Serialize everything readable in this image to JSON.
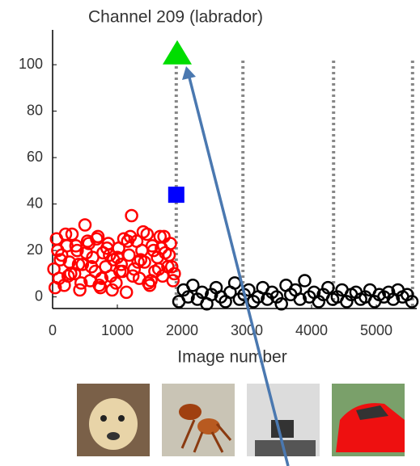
{
  "chart_data": {
    "type": "scatter",
    "title": "Channel 209 (labrador)",
    "x_label": "Image number",
    "xlim": [
      0,
      5625
    ],
    "ylim": [
      -5,
      115
    ],
    "xticks": [
      0,
      1000,
      2000,
      3000,
      4000,
      5000
    ],
    "yticks": [
      0,
      20,
      40,
      60,
      80,
      100
    ],
    "vlines": [
      1910,
      2940,
      4340,
      5560
    ],
    "vline_color": "#888888",
    "series": [
      {
        "color": "#ff0000",
        "marker": "circle",
        "x": [
          20,
          60,
          100,
          140,
          180,
          220,
          260,
          300,
          340,
          380,
          420,
          460,
          500,
          540,
          580,
          620,
          660,
          700,
          740,
          780,
          820,
          860,
          900,
          940,
          980,
          1020,
          1060,
          1100,
          1140,
          1180,
          1220,
          1260,
          1300,
          1340,
          1380,
          1420,
          1460,
          1500,
          1540,
          1580,
          1620,
          1660,
          1700,
          1740,
          1780,
          1820,
          1860,
          40,
          120,
          200,
          280,
          360,
          440,
          520,
          600,
          680,
          760,
          840,
          920,
          1000,
          1080,
          1160,
          1240,
          1320,
          1400,
          1480,
          1560,
          1640,
          1720,
          1800,
          1880,
          80,
          240,
          400,
          560,
          720,
          880,
          1040,
          1200,
          1360,
          1520,
          1680,
          1840
        ],
        "values": [
          12,
          25,
          8,
          18,
          5,
          22,
          15,
          27,
          10,
          20,
          3,
          14,
          31,
          24,
          7,
          17,
          11,
          26,
          4,
          19,
          13,
          23,
          9,
          16,
          6,
          21,
          14,
          25,
          2,
          18,
          35,
          12,
          24,
          8,
          20,
          15,
          27,
          5,
          22,
          11,
          17,
          26,
          9,
          19,
          13,
          23,
          7,
          4,
          16,
          27,
          10,
          22,
          6,
          19,
          13,
          25,
          8,
          21,
          3,
          17,
          11,
          24,
          9,
          15,
          28,
          6,
          20,
          12,
          26,
          18,
          10,
          20,
          9,
          14,
          23,
          5,
          18,
          11,
          26,
          16,
          7,
          21,
          13
        ]
      },
      {
        "color": "#000000",
        "marker": "circle",
        "x": [
          1950,
          2022,
          2094,
          2166,
          2238,
          2310,
          2382,
          2454,
          2526,
          2598,
          2670,
          2742,
          2814,
          2886,
          2958,
          3030,
          3102,
          3174,
          3246,
          3318,
          3390,
          3462,
          3534,
          3606,
          3678,
          3750,
          3822,
          3894,
          3966,
          4038,
          4110,
          4182,
          4254,
          4326,
          4398,
          4470,
          4542,
          4614,
          4686,
          4758,
          4830,
          4902,
          4974,
          5046,
          5118,
          5190,
          5262,
          5334,
          5406,
          5478,
          5550
        ],
        "values": [
          -2,
          3,
          0,
          5,
          -1,
          2,
          -3,
          1,
          4,
          0,
          -2,
          2,
          6,
          -1,
          1,
          3,
          -2,
          0,
          4,
          -1,
          2,
          0,
          -3,
          5,
          1,
          3,
          -1,
          7,
          0,
          2,
          -2,
          1,
          4,
          -1,
          0,
          3,
          -2,
          1,
          2,
          -1,
          0,
          3,
          -2,
          1,
          0,
          2,
          -1,
          3,
          0,
          1,
          -2
        ]
      },
      {
        "color": "#0000ff",
        "marker": "square",
        "x": [
          1910
        ],
        "values": [
          44
        ]
      },
      {
        "color": "#00dd00",
        "marker": "triangle",
        "x": [
          1925
        ],
        "values": [
          105
        ]
      }
    ]
  }
}
